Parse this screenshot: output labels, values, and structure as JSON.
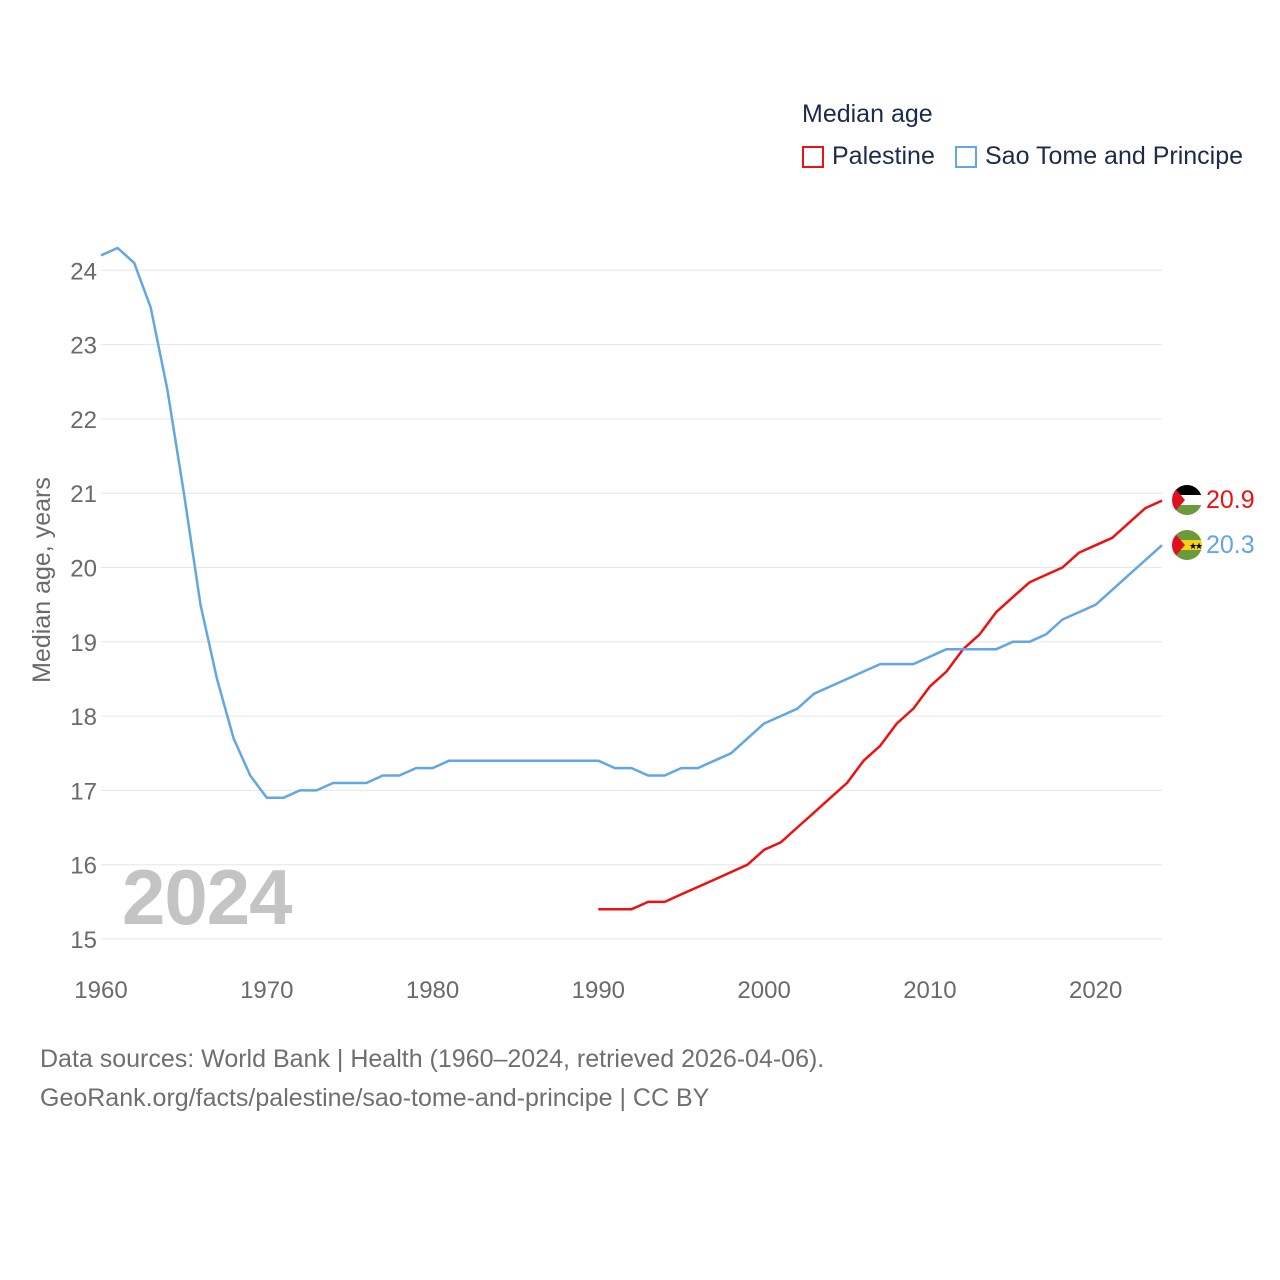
{
  "legend": {
    "title": "Median age",
    "items": [
      {
        "name": "Palestine",
        "color": "#ee1111"
      },
      {
        "name": "Sao Tome and Principe",
        "color": "#62a6e4"
      }
    ]
  },
  "big_year": "2024",
  "footer": {
    "line1": "Data sources: World Bank | Health (1960–2024, retrieved 2026-04-06).",
    "line2": "GeoRank.org/facts/palestine/sao-tome-and-principe | CC BY"
  },
  "chart_data": {
    "type": "line",
    "title": "Median age",
    "xlabel": "",
    "ylabel": "Median age, years",
    "xlim": [
      1960,
      2024
    ],
    "ylim": [
      15,
      24
    ],
    "x_ticks": [
      1960,
      1970,
      1980,
      1990,
      2000,
      2010,
      2020
    ],
    "y_ticks": [
      15,
      16,
      17,
      18,
      19,
      20,
      21,
      22,
      23,
      24
    ],
    "grid": true,
    "series": [
      {
        "name": "Palestine",
        "color": "#ee1111",
        "x": [
          1990,
          1991,
          1992,
          1993,
          1994,
          1995,
          1996,
          1997,
          1998,
          1999,
          2000,
          2001,
          2002,
          2003,
          2004,
          2005,
          2006,
          2007,
          2008,
          2009,
          2010,
          2011,
          2012,
          2013,
          2014,
          2015,
          2016,
          2017,
          2018,
          2019,
          2020,
          2021,
          2022,
          2023,
          2024
        ],
        "values": [
          15.4,
          15.4,
          15.4,
          15.5,
          15.5,
          15.6,
          15.7,
          15.8,
          15.9,
          16.0,
          16.2,
          16.3,
          16.5,
          16.7,
          16.9,
          17.1,
          17.4,
          17.6,
          17.9,
          18.1,
          18.4,
          18.6,
          18.9,
          19.1,
          19.4,
          19.6,
          19.8,
          19.9,
          20.0,
          20.2,
          20.3,
          20.4,
          20.6,
          20.8,
          20.9
        ],
        "end_label": "20.9"
      },
      {
        "name": "Sao Tome and Principe",
        "color": "#62a6e4",
        "x": [
          1960,
          1961,
          1962,
          1963,
          1964,
          1965,
          1966,
          1967,
          1968,
          1969,
          1970,
          1971,
          1972,
          1973,
          1974,
          1975,
          1976,
          1977,
          1978,
          1979,
          1980,
          1981,
          1982,
          1983,
          1984,
          1985,
          1986,
          1987,
          1988,
          1989,
          1990,
          1991,
          1992,
          1993,
          1994,
          1995,
          1996,
          1997,
          1998,
          1999,
          2000,
          2001,
          2002,
          2003,
          2004,
          2005,
          2006,
          2007,
          2008,
          2009,
          2010,
          2011,
          2012,
          2013,
          2014,
          2015,
          2016,
          2017,
          2018,
          2019,
          2020,
          2021,
          2022,
          2023,
          2024
        ],
        "values": [
          24.2,
          24.3,
          24.1,
          23.5,
          22.4,
          21.0,
          19.5,
          18.5,
          17.7,
          17.2,
          16.9,
          16.9,
          17.0,
          17.0,
          17.1,
          17.1,
          17.1,
          17.2,
          17.2,
          17.3,
          17.3,
          17.4,
          17.4,
          17.4,
          17.4,
          17.4,
          17.4,
          17.4,
          17.4,
          17.4,
          17.4,
          17.3,
          17.3,
          17.2,
          17.2,
          17.3,
          17.3,
          17.4,
          17.5,
          17.7,
          17.9,
          18.0,
          18.1,
          18.3,
          18.4,
          18.5,
          18.6,
          18.7,
          18.7,
          18.7,
          18.8,
          18.9,
          18.9,
          18.9,
          18.9,
          19.0,
          19.0,
          19.1,
          19.3,
          19.4,
          19.5,
          19.7,
          19.9,
          20.1,
          20.3
        ],
        "end_label": "20.3"
      }
    ]
  }
}
